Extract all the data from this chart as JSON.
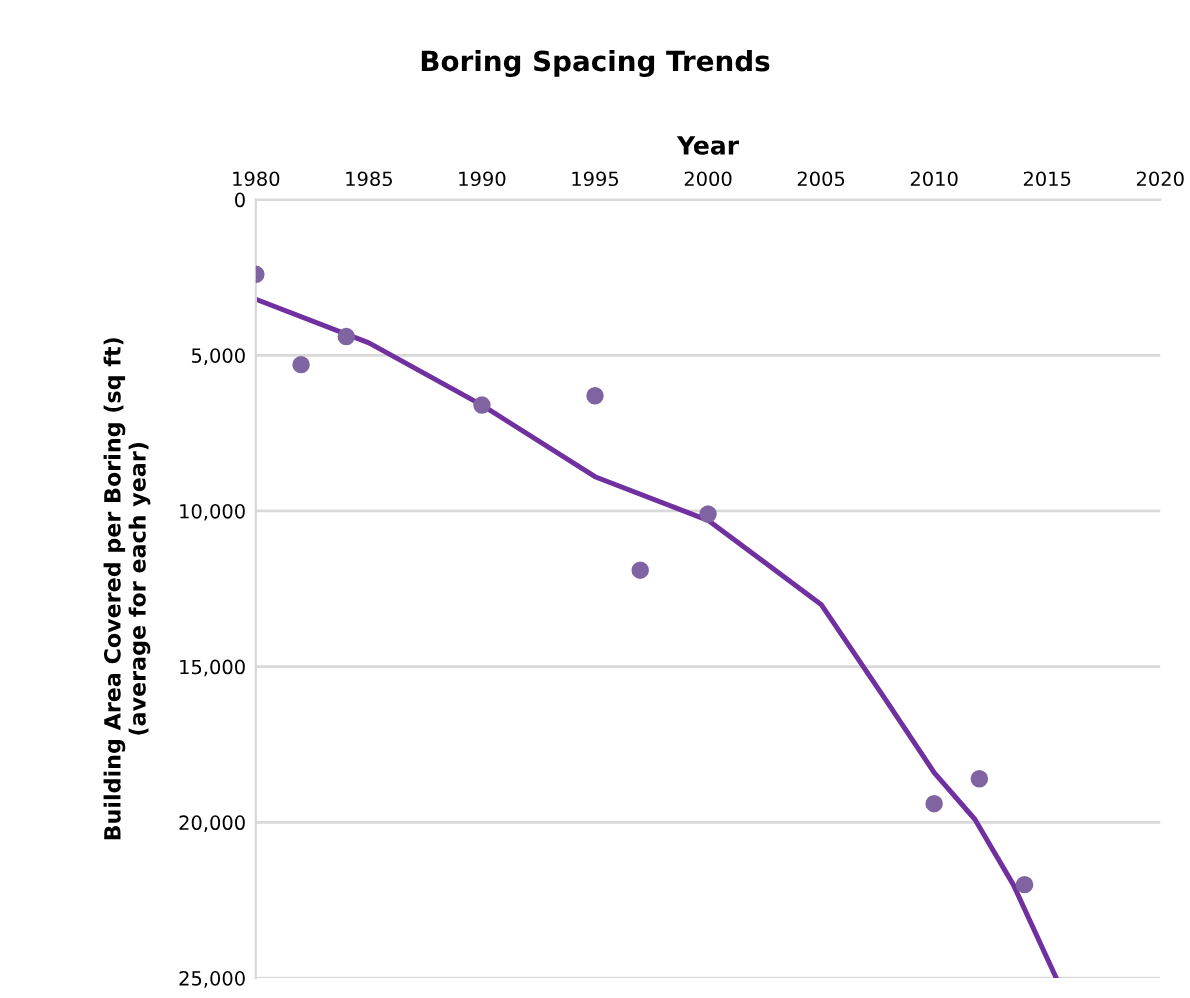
{
  "chart_data": {
    "type": "scatter",
    "title": "Boring Spacing Trends",
    "xlabel": "Year",
    "ylabel": "Building Area Covered per Boring (sq ft)\n(average for each year)",
    "xlim": [
      1980,
      2020
    ],
    "xticks": [
      1980,
      1985,
      1990,
      1995,
      2000,
      2005,
      2010,
      2015,
      2020
    ],
    "ylim": [
      25000,
      0
    ],
    "yticks": [
      0,
      {
        "value": 5000,
        "label": "5,000"
      },
      {
        "value": 10000,
        "label": "10,000"
      },
      {
        "value": 15000,
        "label": "15,000"
      },
      {
        "value": 20000,
        "label": "20,000"
      },
      {
        "value": 25000,
        "label": "25,000"
      }
    ],
    "grid": "y",
    "series": [
      {
        "marker": "circle",
        "color": "#8064a2",
        "x": [
          1980,
          1982,
          1984,
          1990,
          1995,
          1997,
          2000,
          2010,
          2012,
          2014
        ],
        "values": [
          2400,
          5300,
          4400,
          6600,
          6300,
          11900,
          10100,
          19400,
          18600,
          22000
        ]
      },
      {
        "type": "line",
        "marker": "none",
        "color": "#7030a0",
        "x": [
          1980,
          1985,
          1990,
          1995,
          2000,
          2005,
          2007.8,
          2010,
          2011.8,
          2013.5,
          2015.4
        ],
        "values": [
          3200,
          4600,
          6600,
          8900,
          10300,
          13000,
          16000,
          18400,
          19900,
          22000,
          25000
        ]
      }
    ]
  }
}
